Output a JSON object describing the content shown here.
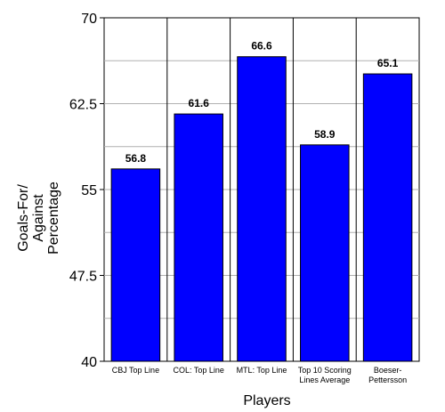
{
  "chart_data": {
    "type": "bar",
    "xlabel": "Players",
    "ylabel_lines": [
      "Goals-For/",
      "Against",
      "Percentage"
    ],
    "ylim": [
      40,
      70
    ],
    "yticks": [
      {
        "value": 40,
        "label": "40"
      },
      {
        "value": 47.5,
        "label": "47.5"
      },
      {
        "value": 55,
        "label": "55"
      },
      {
        "value": 62.5,
        "label": "62.5"
      },
      {
        "value": 70,
        "label": "70"
      }
    ],
    "grid": true,
    "bar_color": "#0000ff",
    "categories": [
      [
        "CBJ Top Line"
      ],
      [
        "COL: Top Line"
      ],
      [
        "MTL: Top Line"
      ],
      [
        "Top 10 Scoring",
        "Lines Average"
      ],
      [
        "Boeser-",
        "Pettersson"
      ]
    ],
    "values": [
      56.8,
      61.6,
      66.6,
      58.9,
      65.1
    ],
    "value_labels": [
      "56.8",
      "61.6",
      "66.6",
      "58.9",
      "65.1"
    ]
  }
}
